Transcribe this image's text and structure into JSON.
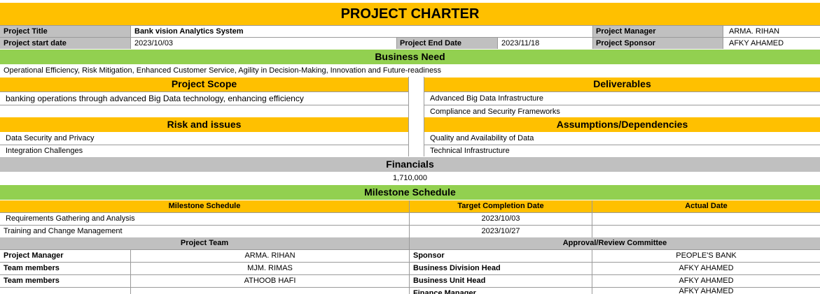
{
  "title": "PROJECT CHARTER",
  "info": {
    "project_title_label": "Project Title",
    "project_title_value": "Bank vision Analytics System",
    "project_manager_label": "Project Manager",
    "project_manager_value": "ARMA. RIHAN",
    "start_label": "Project start date",
    "start_value": "2023/10/03",
    "end_label": "Project End Date",
    "end_value": "2023/11/18",
    "sponsor_label": "Project Sponsor",
    "sponsor_value": "AFKY AHAMED"
  },
  "business_need": {
    "header": "Business Need",
    "text": "Operational Efficiency, Risk Mitigation, Enhanced Customer Service, Agility in Decision-Making, Innovation and Future-readiness"
  },
  "scope": {
    "header": "Project Scope",
    "items": [
      "banking operations through advanced Big Data technology, enhancing efficiency",
      ""
    ]
  },
  "deliverables": {
    "header": "Deliverables",
    "items": [
      "Advanced Big Data Infrastructure",
      "Compliance and Security Frameworks"
    ]
  },
  "risks": {
    "header": "Risk and issues",
    "items": [
      "Data Security and Privacy",
      "Integration Challenges"
    ]
  },
  "assumptions": {
    "header": "Assumptions/Dependencies",
    "items": [
      "Quality and Availability of Data",
      "Technical Infrastructure"
    ]
  },
  "financials": {
    "header": "Financials",
    "value": "1,710,000"
  },
  "milestones": {
    "header": "Milestone Schedule",
    "col_milestone": "Milestone Schedule",
    "col_target": "Target Completion Date",
    "col_actual": "Actual Date",
    "rows": [
      {
        "name": "Requirements Gathering and Analysis",
        "target": "2023/10/03",
        "actual": ""
      },
      {
        "name": "Training and Change Management",
        "target": "2023/10/27",
        "actual": ""
      }
    ]
  },
  "team": {
    "header": "Project Team",
    "rows": [
      {
        "role": "Project Manager",
        "name": "ARMA. RIHAN"
      },
      {
        "role": "Team members",
        "name": "MJM. RIMAS"
      },
      {
        "role": "Team members",
        "name": "ATHOOB HAFI"
      },
      {
        "role": "",
        "name": ""
      }
    ]
  },
  "approval": {
    "header": "Approval/Review Committee",
    "rows": [
      {
        "role": "Sponsor",
        "name": "PEOPLE'S BANK"
      },
      {
        "role": "Business Division Head",
        "name": "AFKY AHAMED"
      },
      {
        "role": "Business Unit Head",
        "name": "AFKY AHAMED"
      },
      {
        "role": "Finance Manager",
        "name": "AFKY AHAMED"
      }
    ]
  }
}
